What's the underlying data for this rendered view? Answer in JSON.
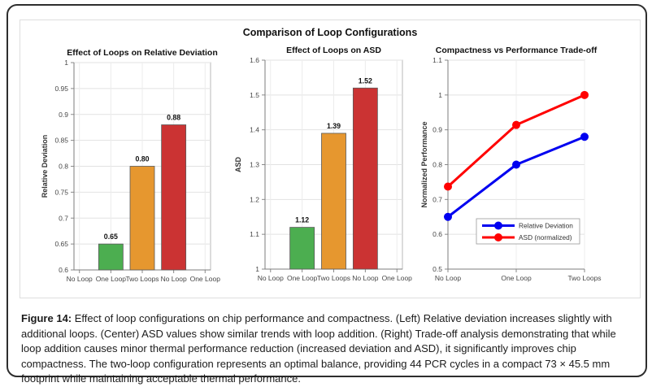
{
  "figure": {
    "title": "Comparison of Loop Configurations"
  },
  "chart_data": [
    {
      "type": "bar",
      "title": "Effect of Loops on Relative Deviation",
      "xlabel": "",
      "ylabel": "Relative Deviation",
      "ylim": [
        0.6,
        1.0
      ],
      "yticks": [
        "0.6",
        "0.65",
        "0.7",
        "0.75",
        "0.8",
        "0.85",
        "0.9",
        "0.95",
        "1"
      ],
      "xticklabels": [
        "No Loop",
        "One Loop",
        "Two Loops",
        "No Loop",
        "One Loop"
      ],
      "categories": [
        "No Loop",
        "One Loop",
        "Two Loops"
      ],
      "values": [
        0.65,
        0.8,
        0.88
      ],
      "value_labels": [
        "0.65",
        "0.80",
        "0.88"
      ],
      "bar_colors": [
        "#4cae50",
        "#e6972f",
        "#cb3333"
      ],
      "grid": true
    },
    {
      "type": "bar",
      "title": "Effect of Loops on ASD",
      "xlabel": "",
      "ylabel": "ASD",
      "ylim": [
        1.0,
        1.6
      ],
      "yticks": [
        "1",
        "1.1",
        "1.2",
        "1.3",
        "1.4",
        "1.5",
        "1.6"
      ],
      "xticklabels": [
        "No Loop",
        "One Loop",
        "Two Loops",
        "No Loop",
        "One Loop"
      ],
      "categories": [
        "No Loop",
        "One Loop",
        "Two Loops"
      ],
      "values": [
        1.12,
        1.39,
        1.52
      ],
      "value_labels": [
        "1.12",
        "1.39",
        "1.52"
      ],
      "bar_colors": [
        "#4cae50",
        "#e6972f",
        "#cb3333"
      ],
      "grid": true
    },
    {
      "type": "line",
      "title": "Compactness vs Performance Trade-off",
      "xlabel": "",
      "ylabel": "Normalized Performance",
      "ylim": [
        0.5,
        1.1
      ],
      "yticks": [
        "0.5",
        "0.6",
        "0.7",
        "0.8",
        "0.9",
        "1",
        "1.1"
      ],
      "categories": [
        "No Loop",
        "One Loop",
        "Two Loops"
      ],
      "series": [
        {
          "name": "Relative Deviation",
          "color": "#0000f0",
          "values": [
            0.65,
            0.8,
            0.88
          ]
        },
        {
          "name": "ASD (normalized)",
          "color": "#ff0000",
          "values": [
            0.737,
            0.914,
            1.0
          ]
        }
      ],
      "legend_position": "bottom-center",
      "grid": true
    }
  ],
  "caption": {
    "label": "Figure 14:",
    "text": " Effect of loop configurations on chip performance and compactness. (Left) Relative deviation increases slightly with additional loops. (Center) ASD values show similar trends with loop addition. (Right) Trade-off analysis demonstrating that while loop addition causes minor thermal performance reduction (increased deviation and ASD), it significantly improves chip compactness. The two-loop configuration represents an optimal balance, providing 44 PCR cycles in a compact 73 × 45.5 mm footprint while maintaining acceptable thermal performance."
  },
  "colors": {
    "bar_green": "#4cae50",
    "bar_orange": "#e6972f",
    "bar_red": "#cb3333",
    "line_blue": "#0000f0",
    "line_red": "#ff0000",
    "grid": "#e2e2e2",
    "axis": "#7d7d7d",
    "tick_text": "#474747"
  }
}
